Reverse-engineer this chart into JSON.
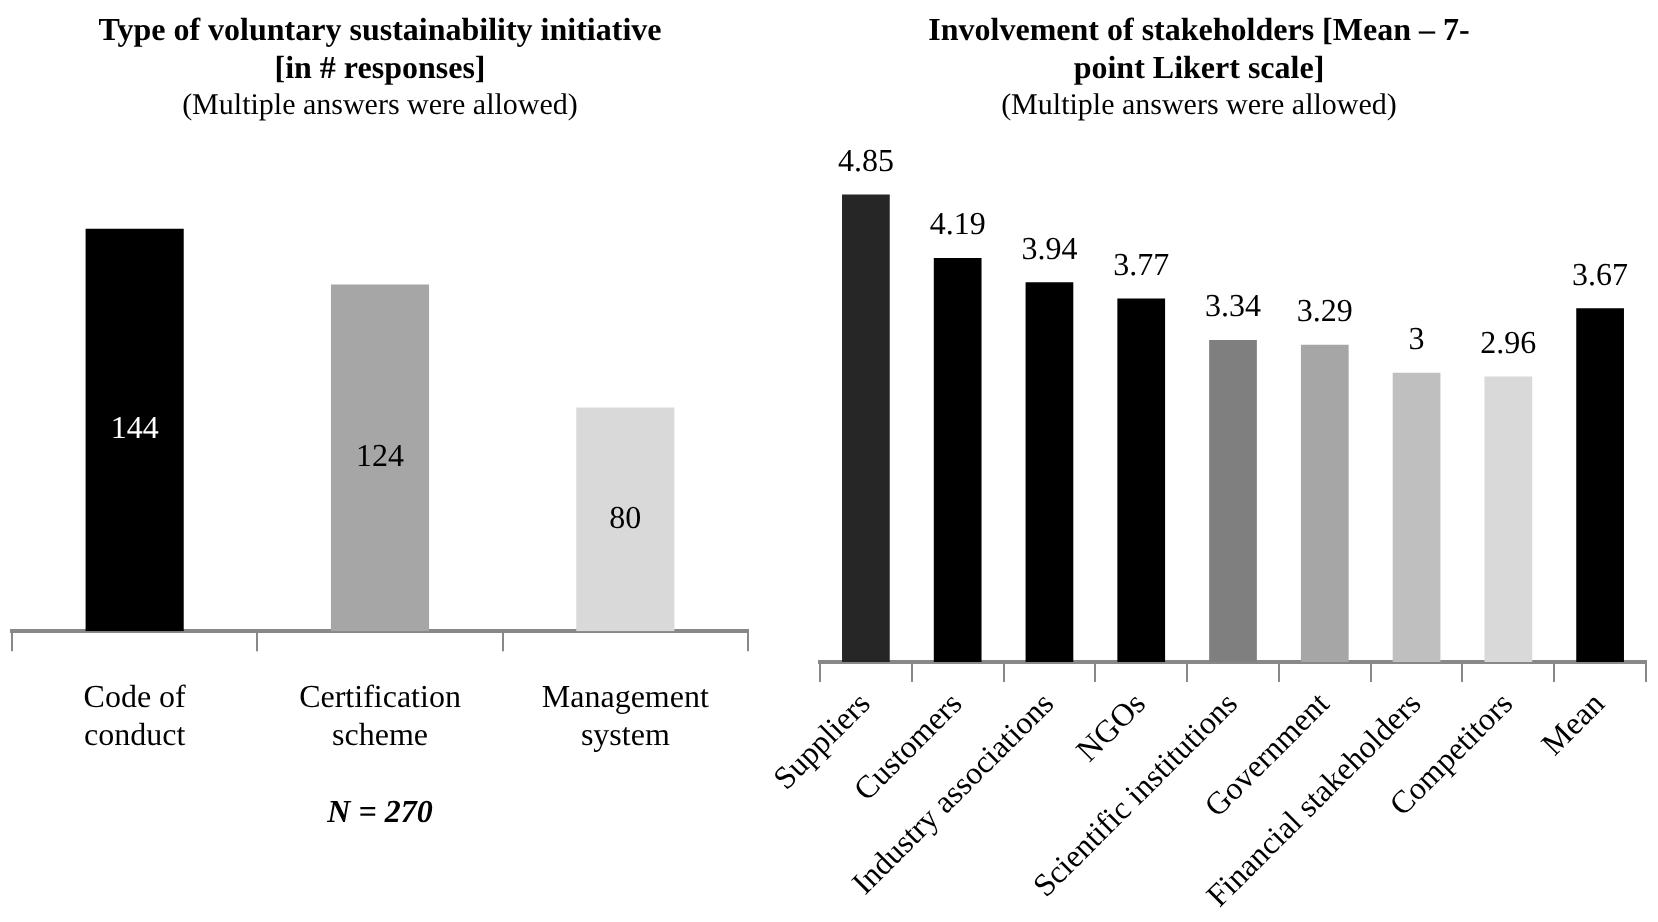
{
  "chart_data": [
    {
      "type": "bar",
      "title": "Type of voluntary sustainability initiative [in # responses]",
      "subtitle": "(Multiple answers were allowed)",
      "categories": [
        "Code of conduct",
        "Certification scheme",
        "Management system"
      ],
      "values": [
        144,
        124,
        80
      ],
      "colors": [
        "#000000",
        "#a6a6a6",
        "#d9d9d9"
      ],
      "data_labels": true,
      "grid": false,
      "legend": false,
      "annotations": [
        "N = 270"
      ]
    },
    {
      "type": "bar",
      "title": "Involvement of stakeholders [Mean – 7-point Likert scale]",
      "subtitle": "(Multiple answers were allowed)",
      "categories": [
        "Suppliers",
        "Customers",
        "Industry associations",
        "NGOs",
        "Scientific institutions",
        "Government",
        "Financial stakeholders",
        "Competitors",
        "Mean"
      ],
      "values": [
        4.85,
        4.19,
        3.94,
        3.77,
        3.34,
        3.29,
        3,
        2.96,
        3.67
      ],
      "colors": [
        "#262626",
        "#000000",
        "#000000",
        "#000000",
        "#7f7f7f",
        "#a6a6a6",
        "#bfbfbf",
        "#d9d9d9",
        "#000000"
      ],
      "data_labels": true,
      "grid": false,
      "legend": false
    }
  ]
}
